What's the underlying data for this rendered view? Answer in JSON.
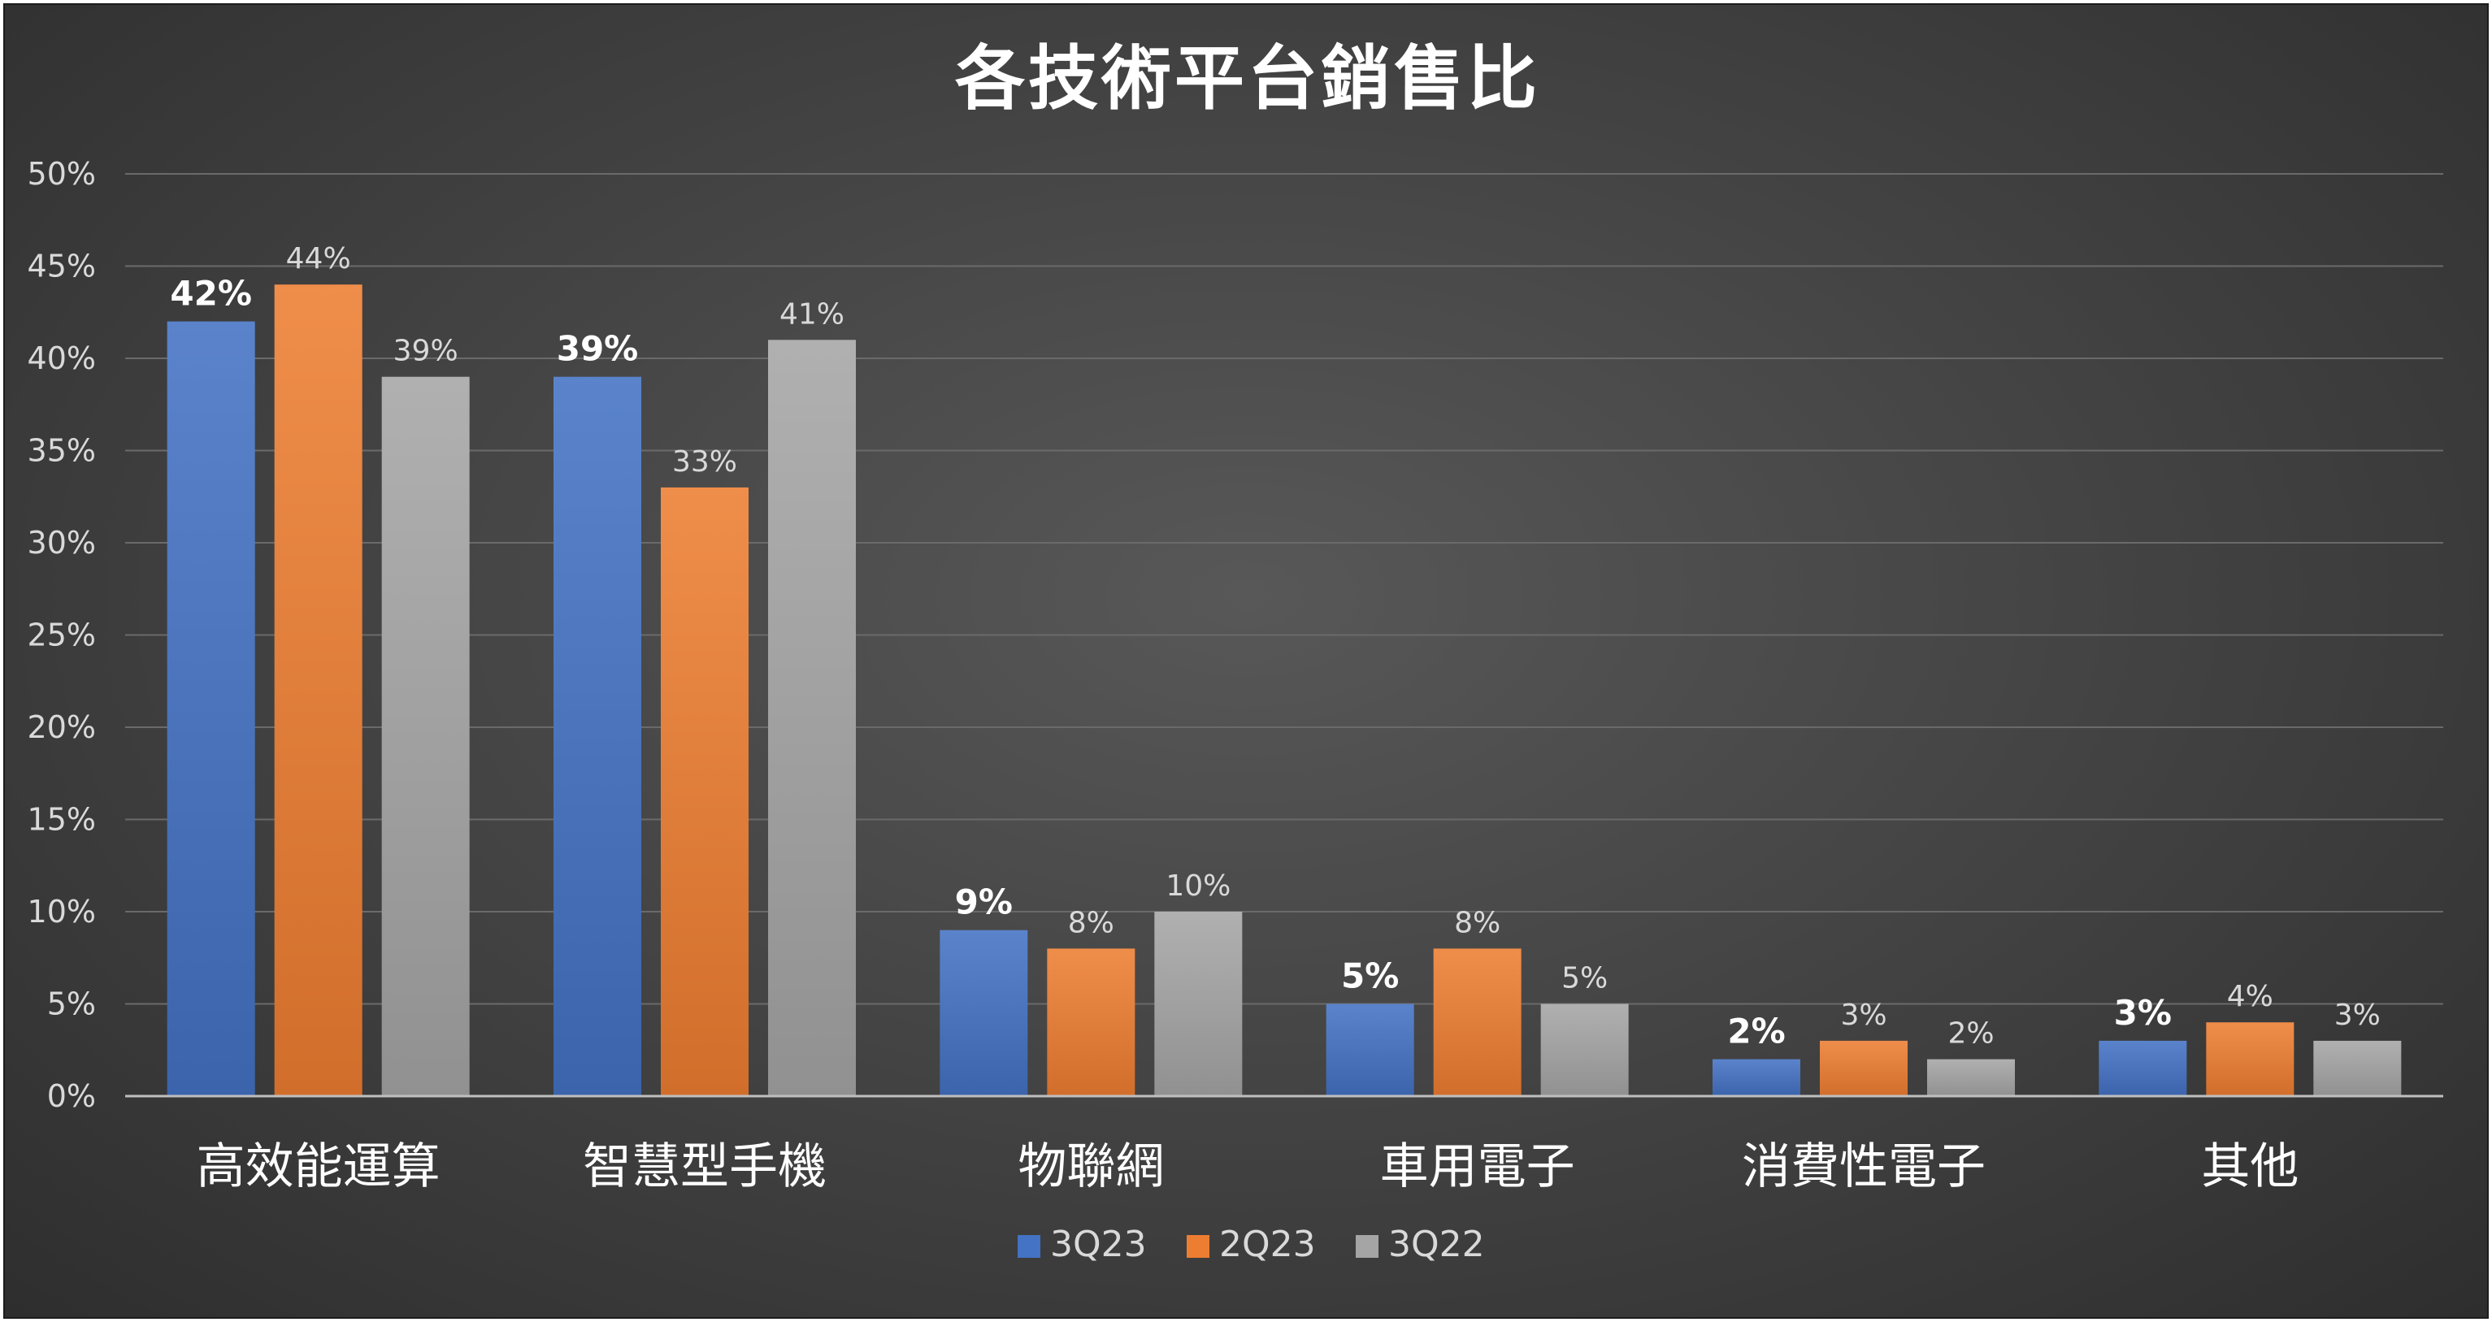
{
  "chart_data": {
    "type": "bar",
    "title": "各技術平台銷售比",
    "categories": [
      "高效能運算",
      "智慧型手機",
      "物聯網",
      "車用電子",
      "消費性電子",
      "其他"
    ],
    "series": [
      {
        "name": "3Q23",
        "values": [
          42,
          39,
          9,
          5,
          2,
          3
        ],
        "color": "#4472C4"
      },
      {
        "name": "2Q23",
        "values": [
          44,
          33,
          8,
          8,
          3,
          4
        ],
        "color": "#ED7D31"
      },
      {
        "name": "3Q22",
        "values": [
          39,
          41,
          10,
          5,
          2,
          3
        ],
        "color": "#A5A5A5"
      }
    ],
    "ylim": [
      0,
      50
    ],
    "yticks": [
      0,
      5,
      10,
      15,
      20,
      25,
      30,
      35,
      40,
      45,
      50
    ],
    "value_format": "%",
    "grid": true,
    "legend_position": "bottom"
  }
}
